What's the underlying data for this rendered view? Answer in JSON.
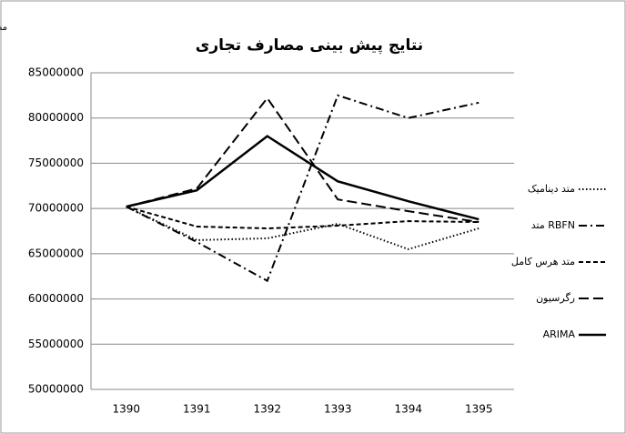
{
  "chart_data": {
    "type": "line",
    "title": "نتایج پیش بینی مصارف تجاری",
    "unit_label": "مصارف تجاری واحد:متر مکعب",
    "categories": [
      "1390",
      "1391",
      "1392",
      "1393",
      "1394",
      "1395"
    ],
    "series": [
      {
        "name": "متد دینامیک",
        "color": "#000000",
        "dash": "dotted",
        "values": [
          70200000,
          66500000,
          66700000,
          68300000,
          65500000,
          67800000
        ]
      },
      {
        "name": "متد RBFN",
        "color": "#000000",
        "dash": "dashdot",
        "values": [
          70200000,
          66300000,
          62000000,
          82500000,
          80000000,
          81700000
        ]
      },
      {
        "name": "متد هرس کامل",
        "color": "#000000",
        "dash": "short",
        "values": [
          70200000,
          68000000,
          67800000,
          68100000,
          68600000,
          68500000
        ]
      },
      {
        "name": "رگرسیون",
        "color": "#000000",
        "dash": "long",
        "values": [
          70200000,
          72200000,
          82200000,
          71000000,
          69700000,
          68500000
        ]
      },
      {
        "name": "ARIMA",
        "color": "#000000",
        "dash": "solid",
        "values": [
          70200000,
          72000000,
          78000000,
          73000000,
          70800000,
          68800000
        ]
      }
    ],
    "ylim": [
      50000000,
      85000000
    ],
    "yticks": [
      50000000,
      55000000,
      60000000,
      65000000,
      70000000,
      75000000,
      80000000,
      85000000
    ],
    "grid": true,
    "legend": "right"
  }
}
